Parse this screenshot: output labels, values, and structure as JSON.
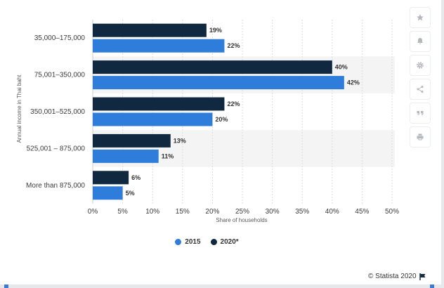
{
  "chart_data": {
    "type": "bar",
    "orientation": "horizontal",
    "categories": [
      "35,000–175,000",
      "75,001–350,000",
      "350,001–525,000",
      "525,001 – 875,000",
      "More than 875,000"
    ],
    "series": [
      {
        "name": "2020*",
        "color": "#102840",
        "values": [
          19,
          40,
          22,
          13,
          6
        ],
        "labels": [
          "19%",
          "40%",
          "22%",
          "13%",
          "6%"
        ]
      },
      {
        "name": "2015",
        "color": "#2f7ddb",
        "values": [
          22,
          42,
          20,
          11,
          5
        ],
        "labels": [
          "22%",
          "42%",
          "20%",
          "11%",
          "5%"
        ]
      }
    ],
    "xlabel": "Share of households",
    "ylabel": "Annual income in Thai baht",
    "xlim": [
      0,
      50
    ],
    "xticks": [
      "0%",
      "5%",
      "10%",
      "15%",
      "20%",
      "25%",
      "30%",
      "35%",
      "40%",
      "45%",
      "50%"
    ],
    "grid": true,
    "legend_position": "bottom"
  },
  "legend": {
    "first": "2015",
    "second": "2020*"
  },
  "toolbar": {
    "icons": [
      "star-icon",
      "bell-icon",
      "gear-icon",
      "share-icon",
      "quote-icon",
      "print-icon"
    ]
  },
  "credit": {
    "text": "© Statista 2020"
  },
  "colors": {
    "accent": "#2f7ddb",
    "dark": "#102840",
    "band": "#f4f4f4",
    "grid": "#dddddd"
  }
}
